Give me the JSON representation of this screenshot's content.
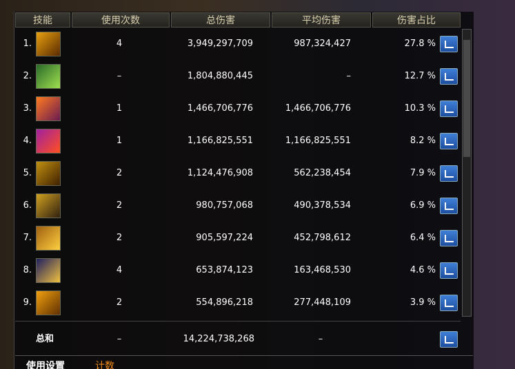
{
  "table": {
    "header": [
      "技能",
      "使用次数",
      "总伤害",
      "平均伤害",
      "伤害占比"
    ],
    "rows": [
      [
        "1.",
        "4",
        "3,949,297,709",
        "987,324,427",
        "27.8 %"
      ],
      [
        "2.",
        "–",
        "1,804,880,445",
        "–",
        "12.7 %"
      ],
      [
        "3.",
        "1",
        "1,466,706,776",
        "1,466,706,776",
        "10.3 %"
      ],
      [
        "4.",
        "1",
        "1,166,825,551",
        "1,166,825,551",
        "8.2 %"
      ],
      [
        "5.",
        "2",
        "1,124,476,908",
        "562,238,454",
        "7.9 %"
      ],
      [
        "6.",
        "2",
        "980,757,068",
        "490,378,534",
        "6.9 %"
      ],
      [
        "7.",
        "2",
        "905,597,224",
        "452,798,612",
        "6.4 %"
      ],
      [
        "8.",
        "4",
        "653,874,123",
        "163,468,530",
        "4.6 %"
      ],
      [
        "9.",
        "2",
        "554,896,218",
        "277,448,109",
        "3.9 %"
      ]
    ],
    "total": [
      "总和",
      "–",
      "14,224,738,268",
      "–"
    ]
  },
  "tabs": [
    "使用设置",
    "计数"
  ]
}
